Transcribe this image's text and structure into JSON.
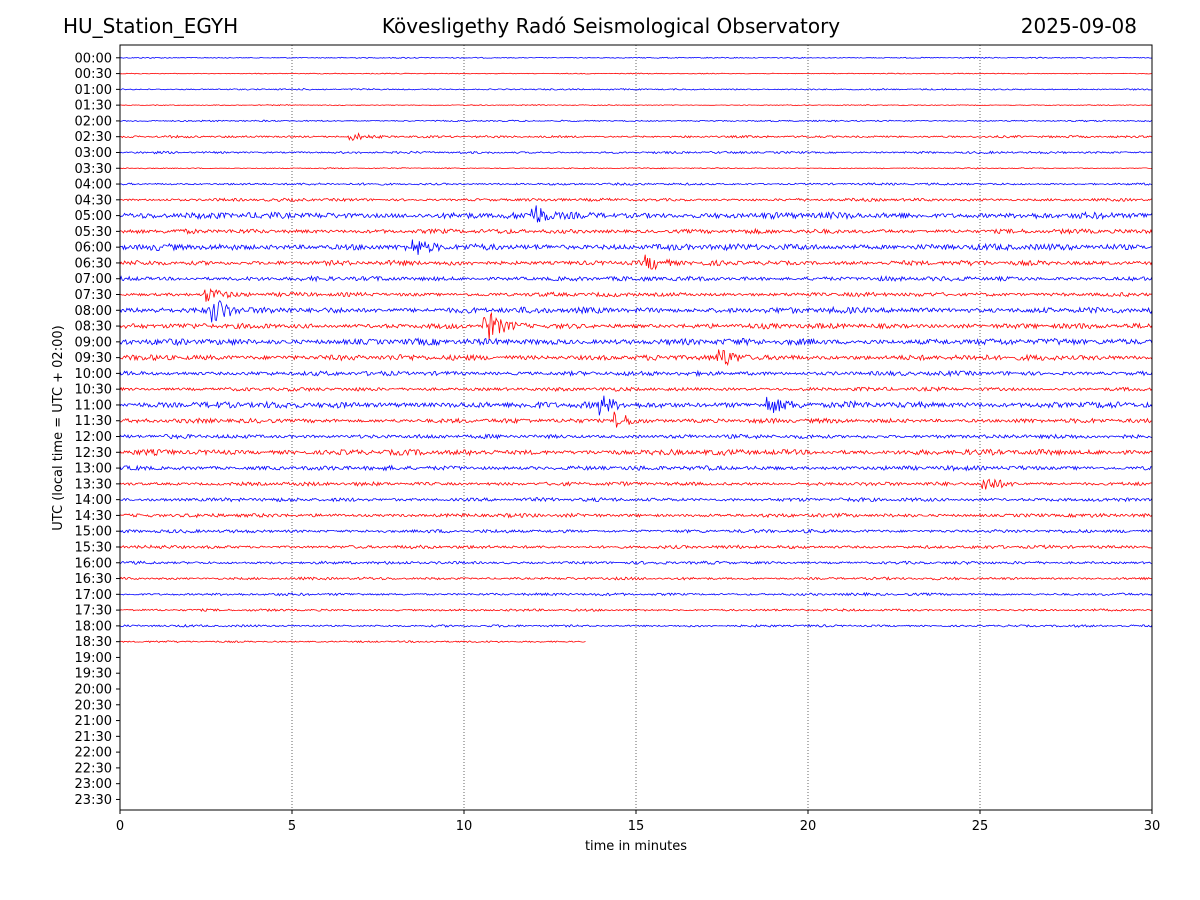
{
  "header": {
    "station": "HU_Station_EGYH",
    "observatory": "Kövesligethy Radó Seismological Observatory",
    "date": "2025-09-08"
  },
  "chart_data": {
    "type": "line",
    "title": "Kövesligethy Radó Seismological Observatory",
    "xlabel": "time in minutes",
    "ylabel": "UTC (local time = UTC + 02:00)",
    "xlim": [
      0,
      30
    ],
    "x_ticks": [
      "0",
      "5",
      "10",
      "15",
      "20",
      "25",
      "30"
    ],
    "x_tick_values": [
      0,
      5,
      10,
      15,
      20,
      25,
      30
    ],
    "grid": "vertical dotted lines at each x tick",
    "row_labels": [
      "00:00",
      "00:30",
      "01:00",
      "01:30",
      "02:00",
      "02:30",
      "03:00",
      "03:30",
      "04:00",
      "04:30",
      "05:00",
      "05:30",
      "06:00",
      "06:30",
      "07:00",
      "07:30",
      "08:00",
      "08:30",
      "09:00",
      "09:30",
      "10:00",
      "10:30",
      "11:00",
      "11:30",
      "12:00",
      "12:30",
      "13:00",
      "13:30",
      "14:00",
      "14:30",
      "15:00",
      "15:30",
      "16:00",
      "16:30",
      "17:00",
      "17:30",
      "18:00",
      "18:30",
      "19:00",
      "19:30",
      "20:00",
      "20:30",
      "21:00",
      "21:30",
      "22:00",
      "22:30",
      "23:00",
      "23:30"
    ],
    "row_colors": [
      "#0000ff",
      "#ff0000"
    ],
    "last_trace_row": "18:30",
    "last_trace_end_minutes": 13.55,
    "noise_level": [
      0.15,
      0.12,
      0.2,
      0.12,
      0.2,
      0.3,
      0.3,
      0.15,
      0.3,
      0.4,
      0.85,
      0.6,
      0.85,
      0.65,
      0.6,
      0.55,
      0.8,
      0.7,
      0.85,
      0.75,
      0.6,
      0.5,
      0.85,
      0.6,
      0.55,
      0.75,
      0.6,
      0.5,
      0.5,
      0.5,
      0.45,
      0.45,
      0.4,
      0.35,
      0.35,
      0.3,
      0.3,
      0.25
    ],
    "events": [
      {
        "row": "02:30",
        "minute": 6.8,
        "amp": 0.6
      },
      {
        "row": "05:00",
        "minute": 12.1,
        "amp": 1.4
      },
      {
        "row": "06:00",
        "minute": 8.6,
        "amp": 1.0
      },
      {
        "row": "06:30",
        "minute": 15.4,
        "amp": 0.9
      },
      {
        "row": "07:30",
        "minute": 2.6,
        "amp": 1.0
      },
      {
        "row": "08:00",
        "minute": 2.8,
        "amp": 1.8
      },
      {
        "row": "08:30",
        "minute": 10.7,
        "amp": 2.2
      },
      {
        "row": "09:30",
        "minute": 17.5,
        "amp": 1.3
      },
      {
        "row": "11:00",
        "minute": 14.0,
        "amp": 1.3
      },
      {
        "row": "11:00",
        "minute": 18.9,
        "amp": 1.2
      },
      {
        "row": "11:30",
        "minute": 14.5,
        "amp": 1.2
      },
      {
        "row": "13:30",
        "minute": 25.2,
        "amp": 1.2
      }
    ]
  }
}
